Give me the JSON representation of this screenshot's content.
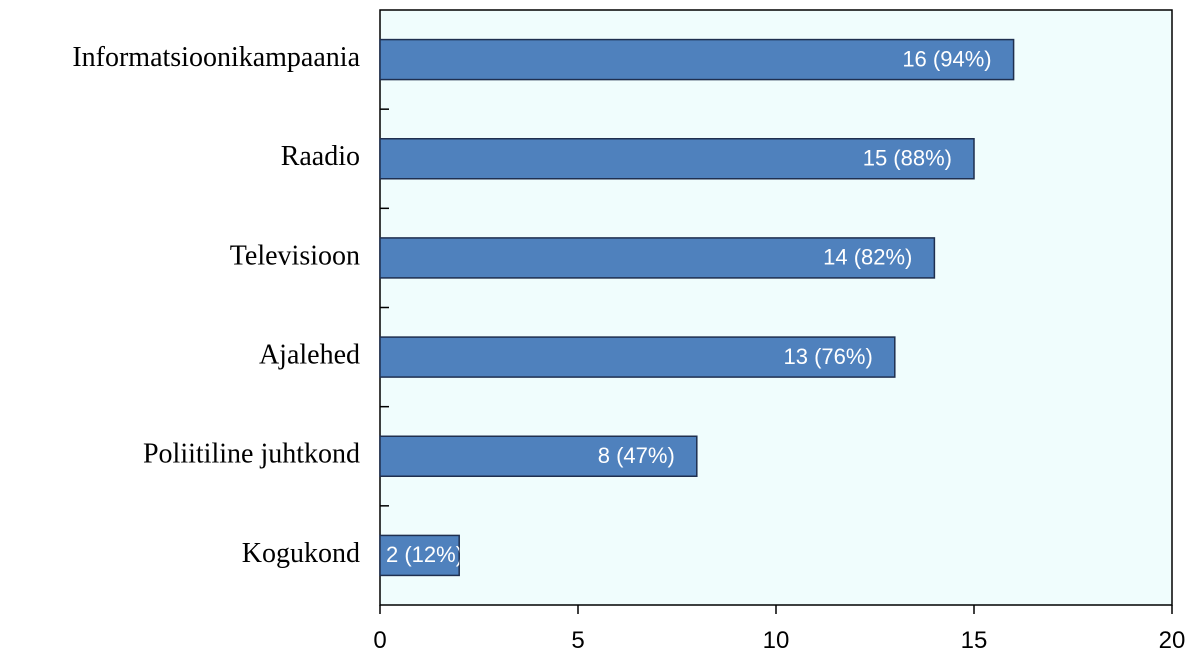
{
  "chart_data": {
    "type": "bar",
    "orientation": "horizontal",
    "categories": [
      "Informatsioonikampaania",
      "Raadio",
      "Televisioon",
      "Ajalehed",
      "Poliitiline juhtkond",
      "Kogukond"
    ],
    "values": [
      16,
      15,
      14,
      13,
      8,
      2
    ],
    "value_labels": [
      "16 (94%)",
      "15 (88%)",
      "14 (82%)",
      "13 (76%)",
      "8 (47%)",
      "2 (12%)"
    ],
    "color": "#4f81bd",
    "xlim": [
      0,
      20
    ],
    "xticks": [
      0,
      5,
      10,
      15,
      20
    ]
  }
}
